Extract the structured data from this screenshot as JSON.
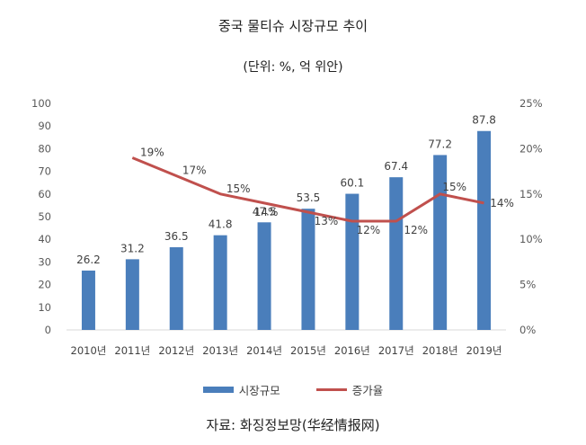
{
  "title": "중국 물티슈 시장규모 추이",
  "subtitle": "(단위: %, 억 위안)",
  "source": "자료: 화징정보망(华经情报网)",
  "legend": {
    "bar_label": "시장규모",
    "line_label": "증가율"
  },
  "colors": {
    "bar": "#4a7ebb",
    "line": "#c0504d",
    "axis": "#d9d9d9",
    "text": "#404040"
  },
  "chart_data": {
    "type": "bar",
    "categories": [
      "2010년",
      "2011년",
      "2012년",
      "2013년",
      "2014년",
      "2015년",
      "2016년",
      "2017년",
      "2018년",
      "2019년"
    ],
    "series": [
      {
        "name": "시장규모",
        "type": "bar",
        "axis": "left",
        "values": [
          26.2,
          31.2,
          36.5,
          41.8,
          47.5,
          53.5,
          60.1,
          67.4,
          77.2,
          87.8
        ]
      },
      {
        "name": "증가율",
        "type": "line",
        "axis": "right",
        "values": [
          null,
          19,
          17,
          15,
          14,
          13,
          12,
          12,
          15,
          14
        ],
        "labels": [
          null,
          "19%",
          "17%",
          "15%",
          "14%",
          "13%",
          "12%",
          "12%",
          "15%",
          "14%"
        ]
      }
    ],
    "left_axis": {
      "ylim": [
        0,
        100
      ],
      "ticks": [
        "0",
        "10",
        "20",
        "30",
        "40",
        "50",
        "60",
        "70",
        "80",
        "90",
        "100"
      ]
    },
    "right_axis": {
      "ylim": [
        0,
        25
      ],
      "ticks": [
        "0%",
        "5%",
        "10%",
        "15%",
        "20%",
        "25%"
      ]
    },
    "grid": false,
    "legend_position": "bottom"
  }
}
